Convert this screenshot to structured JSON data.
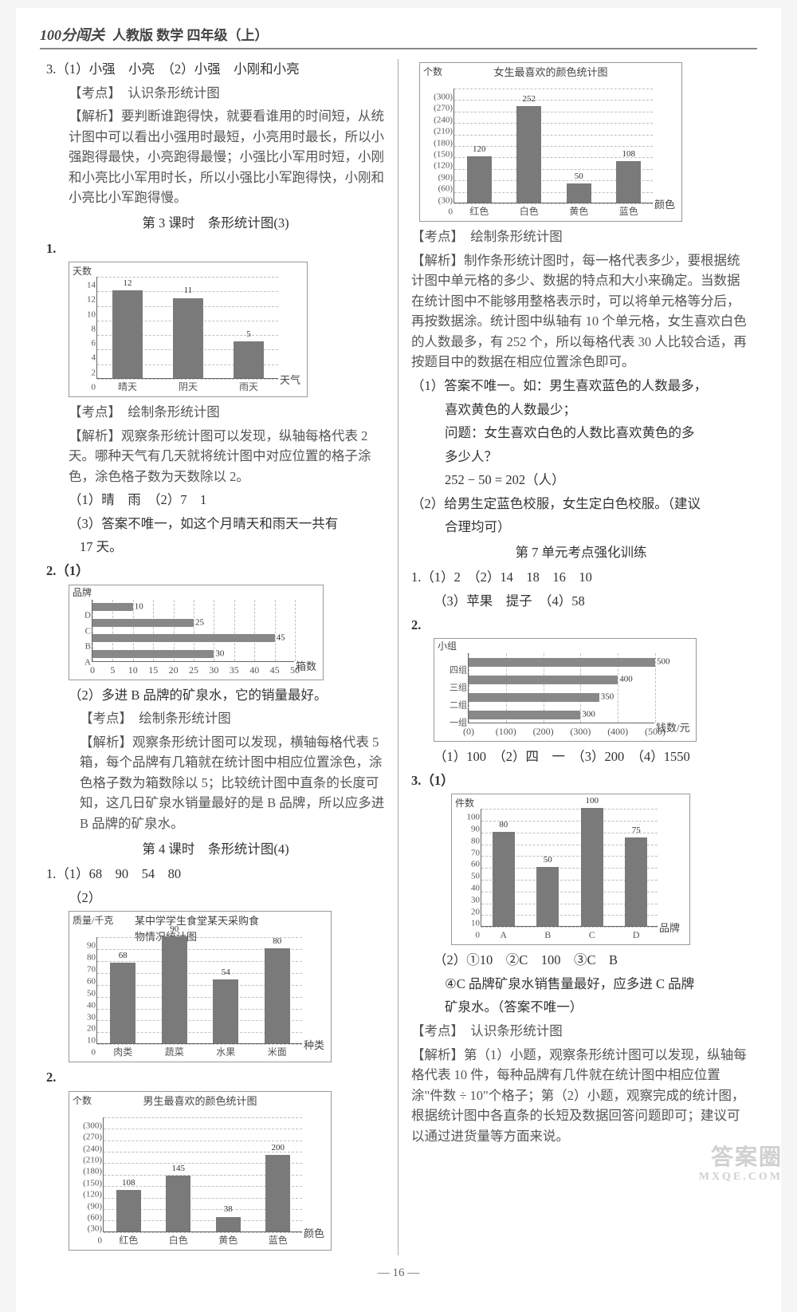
{
  "header": {
    "logo": "100分闯关",
    "sub": "人教版 数学 四年级（上）"
  },
  "pagenum": "— 16 —",
  "watermark": {
    "big": "答案圈",
    "small": "MXQE.COM"
  },
  "left": {
    "q3": {
      "line1": "3.（1）小强　小亮　（2）小强　小刚和小亮",
      "kaodian": "【考点】　认识条形统计图",
      "jiexi": "【解析】要判断谁跑得快，就要看谁用的时间短，从统计图中可以看出小强用时最短，小亮用时最长，所以小强跑得最快，小亮跑得最慢；小强比小军用时短，小刚和小亮比小军用时长，所以小强比小军跑得快，小刚和小亮比小军跑得慢。"
    },
    "sec3_title": "第 3 课时　条形统计图(3)",
    "q1": {
      "num": "1."
    },
    "chart1": {
      "type": "bar",
      "ylabel_top": "天数",
      "yticks": [
        "0",
        "2",
        "4",
        "6",
        "8",
        "10",
        "12",
        "14"
      ],
      "ymax": 14,
      "categories": [
        "晴天",
        "阴天",
        "雨天"
      ],
      "values": [
        12,
        11,
        5
      ],
      "value_labels": [
        "12",
        "11",
        "5"
      ],
      "xlabel_right": "天气",
      "bar_color": "#7a7a7a",
      "grid_color": "#c0c0c0"
    },
    "q1_kaodian": "【考点】　绘制条形统计图",
    "q1_jiexi": "【解析】观察条形统计图可以发现，纵轴每格代表 2 天。哪种天气有几天就将统计图中对应位置的格子涂色，涂色格子数为天数除以 2。",
    "q1_ans1": "（1）晴　雨　（2）7　1",
    "q1_ans3": "（3）答案不唯一，如这个月晴天和雨天一共有",
    "q1_ans3b": "17 天。",
    "q2": {
      "num": "2.（1）"
    },
    "chart2": {
      "type": "hbar",
      "ylabel_top": "品牌",
      "ycats": [
        "D",
        "C",
        "B",
        "A"
      ],
      "values": [
        10,
        25,
        45,
        30
      ],
      "value_labels": [
        "10",
        "25",
        "45",
        "30"
      ],
      "xticks": [
        "0",
        "5",
        "10",
        "15",
        "20",
        "25",
        "30",
        "35",
        "40",
        "45",
        "50"
      ],
      "xmax": 50,
      "xlabel_right": "箱数",
      "bar_color": "#888",
      "grid_color": "#c0c0c0"
    },
    "q2_ans2": "（2）多进 B 品牌的矿泉水，它的销量最好。",
    "q2_kaodian": "【考点】　绘制条形统计图",
    "q2_jiexi": "【解析】观察条形统计图可以发现，横轴每格代表 5 箱，每个品牌有几箱就在统计图中相应位置涂色，涂色格子数为箱数除以 5；比较统计图中直条的长度可知，这几日矿泉水销量最好的是 B 品牌，所以应多进 B 品牌的矿泉水。",
    "sec4_title": "第 4 课时　条形统计图(4)",
    "s4_q1": "1.（1）68　90　54　80",
    "s4_q1_2": "（2）",
    "chart3": {
      "type": "bar",
      "title": "某中学学生食堂某天采购食物情况统计图",
      "ylabel_top": "质量/千克",
      "yticks": [
        "0",
        "10",
        "20",
        "30",
        "40",
        "50",
        "60",
        "70",
        "80",
        "90"
      ],
      "ymax": 90,
      "categories": [
        "肉类",
        "蔬菜",
        "水果",
        "米面"
      ],
      "values": [
        68,
        90,
        54,
        80
      ],
      "value_labels": [
        "68",
        "90",
        "54",
        "80"
      ],
      "xlabel_right": "种类",
      "bar_color": "#7a7a7a",
      "grid_color": "#c0c0c0"
    },
    "s4_q2": {
      "num": "2."
    },
    "chart4": {
      "type": "bar",
      "title": "男生最喜欢的颜色统计图",
      "ylabel_top": "个数",
      "yticks": [
        "0",
        "(30)",
        "(60)",
        "(90)",
        "(120)",
        "(150)",
        "(180)",
        "(210)",
        "(240)",
        "(270)",
        "(300)"
      ],
      "ymax": 300,
      "categories": [
        "红色",
        "白色",
        "黄色",
        "蓝色"
      ],
      "values": [
        108,
        145,
        38,
        200
      ],
      "value_labels": [
        "108",
        "145",
        "38",
        "200"
      ],
      "xlabel_right": "颜色",
      "bar_color": "#7a7a7a",
      "grid_color": "#c0c0c0"
    }
  },
  "right": {
    "chart5": {
      "type": "bar",
      "title": "女生最喜欢的颜色统计图",
      "ylabel_top": "个数",
      "yticks": [
        "0",
        "(30)",
        "(60)",
        "(90)",
        "(120)",
        "(150)",
        "(180)",
        "(210)",
        "(240)",
        "(270)",
        "(300)"
      ],
      "ymax": 300,
      "categories": [
        "红色",
        "白色",
        "黄色",
        "蓝色"
      ],
      "values": [
        120,
        252,
        50,
        108
      ],
      "value_labels": [
        "120",
        "252",
        "50",
        "108"
      ],
      "xlabel_right": "颜色",
      "bar_color": "#7a7a7a",
      "grid_color": "#c0c0c0"
    },
    "r_kaodian": "【考点】　绘制条形统计图",
    "r_jiexi": "【解析】制作条形统计图时，每一格代表多少，要根据统计图中单元格的多少、数据的特点和大小来确定。当数据在统计图中不能够用整格表示时，可以将单元格等分后，再按数据涂。统计图中纵轴有 10 个单元格，女生喜欢白色的人数最多，有 252 个，所以每格代表 30 人比较合适，再按题目中的数据在相应位置涂色即可。",
    "r_a1_1": "（1）答案不唯一。如：男生喜欢蓝色的人数最多，",
    "r_a1_2": "喜欢黄色的人数最少；",
    "r_a1_3": "问题：女生喜欢白色的人数比喜欢黄色的多",
    "r_a1_4": "多少人？",
    "r_a1_5": "252 − 50 = 202（人）",
    "r_a2_1": "（2）给男生定蓝色校服，女生定白色校服。（建议",
    "r_a2_2": "合理均可）",
    "sec7_title": "第 7 单元考点强化训练",
    "u7_q1_1": "1.（1）2　（2）14　18　16　10",
    "u7_q1_3": "（3）苹果　提子　（4）58",
    "u7_q2": {
      "num": "2."
    },
    "chart6": {
      "type": "hbar",
      "ylabel_top": "小组",
      "ycats": [
        "四组",
        "三组",
        "二组",
        "一组"
      ],
      "values": [
        500,
        400,
        350,
        300
      ],
      "value_labels": [
        "500",
        "400",
        "350",
        "300"
      ],
      "xticks": [
        "(0)",
        "(100)",
        "(200)",
        "(300)",
        "(400)",
        "(500)"
      ],
      "xmax": 500,
      "xlabel_right": "钱数/元",
      "bar_color": "#888",
      "grid_color": "#c0c0c0"
    },
    "u7_q2_ans": "（1）100　（2）四　一　（3）200　（4）1550",
    "u7_q3": {
      "num": "3.（1）"
    },
    "chart7": {
      "type": "bar",
      "ylabel_top": "件数",
      "yticks": [
        "0",
        "10",
        "20",
        "30",
        "40",
        "50",
        "60",
        "70",
        "80",
        "90",
        "100"
      ],
      "ymax": 100,
      "categories": [
        "A",
        "B",
        "C",
        "D"
      ],
      "values": [
        80,
        50,
        100,
        75
      ],
      "value_labels": [
        "80",
        "50",
        "100",
        "75"
      ],
      "xlabel_right": "品牌",
      "bar_color": "#7a7a7a",
      "grid_color": "#c0c0c0"
    },
    "u7_q3_2a": "（2）①10　②C　100　③C　B",
    "u7_q3_2b": "④C 品牌矿泉水销售量最好，应多进 C 品牌",
    "u7_q3_2c": "矿泉水。（答案不唯一）",
    "u7_kaodian": "【考点】　认识条形统计图",
    "u7_jiexi": "【解析】第（1）小题，观察条形统计图可以发现，纵轴每格代表 10 件，每种品牌有几件就在统计图中相应位置涂\"件数 ÷ 10\"个格子；第（2）小题，观察完成的统计图，根据统计图中各直条的长短及数据回答问题即可；建议可以通过进货量等方面来说。"
  }
}
